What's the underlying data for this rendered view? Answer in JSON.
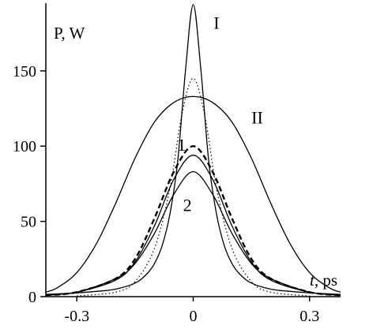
{
  "chart_data": {
    "type": "line",
    "title": "",
    "xlabel": "t, ps",
    "ylabel": "P, W",
    "xlim": [
      -0.38,
      0.38
    ],
    "ylim": [
      0,
      195
    ],
    "x_ticks": [
      -0.3,
      0,
      0.3
    ],
    "x_tick_labels": [
      "-0.3",
      "0",
      "0.3"
    ],
    "y_ticks": [
      0,
      50,
      100,
      150
    ],
    "y_tick_labels": [
      "0",
      "50",
      "100",
      "150"
    ],
    "grid": false,
    "legend": "none",
    "series": [
      {
        "name": "I",
        "style": "solid",
        "x": [
          -0.38,
          -0.3,
          -0.25,
          -0.2,
          -0.15,
          -0.12,
          -0.1,
          -0.08,
          -0.06,
          -0.04,
          -0.02,
          0,
          0.02,
          0.04,
          0.06,
          0.08,
          0.1,
          0.12,
          0.15,
          0.2,
          0.25,
          0.3,
          0.38
        ],
        "y": [
          1.5,
          2.5,
          3.5,
          5,
          9,
          15,
          22,
          34,
          55,
          90,
          150,
          194,
          150,
          90,
          55,
          34,
          22,
          15,
          9,
          5,
          3.5,
          2.5,
          1.5
        ]
      },
      {
        "name": "II",
        "style": "solid",
        "x": [
          -0.38,
          -0.35,
          -0.3,
          -0.25,
          -0.2,
          -0.15,
          -0.1,
          -0.05,
          0,
          0.05,
          0.1,
          0.15,
          0.2,
          0.25,
          0.3,
          0.35,
          0.38
        ],
        "y": [
          3,
          6,
          16,
          35,
          62,
          92,
          116,
          129,
          133,
          129,
          116,
          92,
          62,
          35,
          16,
          6,
          3
        ]
      },
      {
        "style": "dotted",
        "x": [
          -0.3,
          -0.2,
          -0.15,
          -0.1,
          -0.06,
          -0.03,
          0,
          0.03,
          0.06,
          0.1,
          0.15,
          0.2,
          0.3
        ],
        "y": [
          0.5,
          3,
          10,
          32,
          72,
          120,
          145,
          120,
          72,
          32,
          10,
          3,
          0.5
        ]
      },
      {
        "name": "1",
        "style": "dashed",
        "x": [
          -0.38,
          -0.3,
          -0.2,
          -0.15,
          -0.1,
          -0.05,
          0,
          0.05,
          0.1,
          0.15,
          0.2,
          0.3,
          0.38
        ],
        "y": [
          1,
          3,
          12,
          25,
          52,
          83,
          100,
          83,
          52,
          25,
          12,
          3,
          1
        ]
      },
      {
        "style": "solid",
        "x": [
          -0.38,
          -0.3,
          -0.2,
          -0.15,
          -0.1,
          -0.05,
          0,
          0.05,
          0.1,
          0.15,
          0.2,
          0.3,
          0.38
        ],
        "y": [
          1,
          3,
          11,
          23,
          47,
          78,
          94,
          78,
          47,
          23,
          11,
          3,
          1
        ]
      },
      {
        "name": "2",
        "style": "solid",
        "x": [
          -0.38,
          -0.3,
          -0.2,
          -0.15,
          -0.1,
          -0.05,
          0,
          0.05,
          0.1,
          0.15,
          0.2,
          0.3,
          0.38
        ],
        "y": [
          1,
          3,
          12,
          22,
          42,
          68,
          83,
          68,
          42,
          22,
          12,
          3,
          1
        ]
      }
    ]
  }
}
